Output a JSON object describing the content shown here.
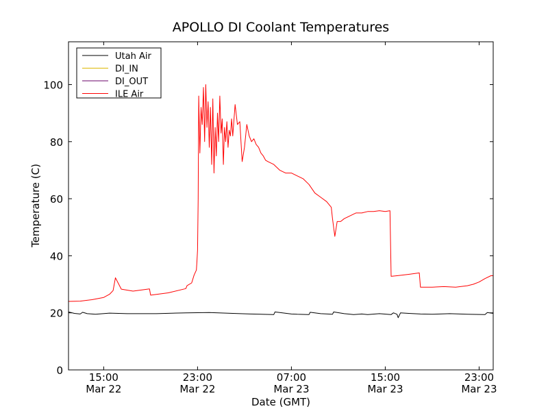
{
  "chart_data": {
    "type": "line",
    "title": "APOLLO DI Coolant Temperatures",
    "xlabel": "Date (GMT)",
    "ylabel": "Temperature (C)",
    "x_unit": "hours",
    "xlim": [
      12.0,
      48.2
    ],
    "ylim": [
      0,
      115
    ],
    "yticks": [
      0,
      20,
      40,
      60,
      80,
      100
    ],
    "xticks": [
      {
        "x": 15,
        "time": "15:00",
        "date": "Mar 22"
      },
      {
        "x": 23,
        "time": "23:00",
        "date": "Mar 22"
      },
      {
        "x": 31,
        "time": "07:00",
        "date": "Mar 23"
      },
      {
        "x": 39,
        "time": "15:00",
        "date": "Mar 23"
      },
      {
        "x": 47,
        "time": "23:00",
        "date": "Mar 23"
      }
    ],
    "grid": false,
    "legend": {
      "position": "top-left"
    },
    "series": [
      {
        "name": "Utah Air",
        "color": "#000000",
        "x": [
          12.0,
          12.5,
          13.0,
          13.2,
          13.6,
          14.3,
          15.5,
          17.0,
          19.5,
          22.0,
          24.0,
          26.0,
          27.5,
          29.5,
          29.6,
          31.0,
          31.5,
          32.5,
          32.6,
          33.5,
          34.5,
          34.6,
          35.5,
          36.3,
          37.0,
          37.5,
          38.5,
          39.5,
          39.7,
          40.0,
          40.1,
          40.3,
          41.0,
          42.0,
          43.0,
          44.5,
          46.0,
          47.5,
          47.7,
          48.2
        ],
        "y": [
          20.3,
          19.8,
          19.6,
          20.2,
          19.7,
          19.5,
          19.9,
          19.7,
          19.7,
          20.0,
          20.1,
          19.8,
          19.6,
          19.4,
          20.3,
          19.6,
          19.5,
          19.4,
          20.2,
          19.7,
          19.5,
          20.3,
          19.7,
          19.4,
          19.6,
          19.4,
          19.7,
          19.4,
          20.0,
          19.5,
          18.3,
          20.0,
          19.8,
          19.6,
          19.5,
          19.7,
          19.5,
          19.4,
          20.1,
          19.8
        ]
      },
      {
        "name": "DI_IN",
        "color": "#ddb800",
        "x": [],
        "y": []
      },
      {
        "name": "DI_OUT",
        "color": "#6a006a",
        "x": [],
        "y": []
      },
      {
        "name": "ILE Air",
        "color": "#ff0000",
        "x": [
          12.0,
          13.0,
          14.0,
          15.0,
          15.5,
          15.8,
          16.0,
          16.5,
          17.5,
          18.9,
          19.0,
          20.5,
          22.0,
          22.1,
          22.5,
          22.7,
          22.9,
          22.95,
          23.0,
          23.05,
          23.1,
          23.2,
          23.3,
          23.4,
          23.5,
          23.6,
          23.7,
          23.8,
          23.9,
          24.0,
          24.1,
          24.2,
          24.3,
          24.4,
          24.5,
          24.6,
          24.7,
          24.8,
          24.9,
          25.0,
          25.1,
          25.2,
          25.3,
          25.4,
          25.5,
          25.6,
          25.7,
          25.8,
          25.9,
          26.0,
          26.2,
          26.4,
          26.6,
          26.8,
          27.0,
          27.2,
          27.4,
          27.6,
          27.8,
          28.0,
          28.2,
          28.4,
          28.6,
          28.8,
          29.0,
          29.5,
          30.0,
          30.5,
          31.0,
          31.5,
          32.0,
          32.5,
          33.0,
          33.5,
          34.0,
          34.4,
          34.5,
          34.7,
          34.9,
          35.2,
          35.5,
          36.0,
          36.5,
          37.0,
          37.5,
          38.0,
          38.5,
          39.0,
          39.4,
          39.5,
          40.0,
          41.0,
          41.9,
          42.0,
          43.0,
          44.0,
          45.0,
          46.0,
          46.5,
          47.0,
          47.5,
          48.0,
          48.2
        ],
        "y": [
          24.0,
          24.1,
          24.6,
          25.4,
          26.5,
          27.8,
          32.3,
          28.3,
          27.6,
          28.4,
          26.2,
          27.0,
          28.5,
          29.5,
          30.5,
          33.2,
          35.0,
          38.0,
          42.0,
          60.0,
          96.0,
          76.0,
          92.0,
          86.0,
          99.0,
          80.0,
          100.0,
          85.0,
          94.0,
          78.0,
          92.0,
          72.0,
          95.0,
          69.0,
          85.0,
          75.0,
          90.0,
          80.0,
          96.0,
          83.0,
          88.0,
          72.0,
          85.0,
          80.0,
          87.0,
          78.0,
          84.0,
          82.0,
          88.0,
          82.0,
          93.0,
          86.0,
          87.0,
          73.0,
          78.0,
          86.0,
          82.0,
          80.0,
          81.0,
          79.0,
          78.0,
          76.0,
          75.0,
          73.5,
          73.0,
          72.0,
          70.0,
          69.0,
          69.0,
          68.0,
          67.0,
          65.0,
          62.0,
          60.5,
          59.0,
          57.0,
          53.0,
          46.8,
          52.0,
          52.0,
          53.0,
          54.0,
          55.0,
          55.0,
          55.5,
          55.5,
          55.8,
          55.5,
          55.8,
          32.8,
          33.0,
          33.5,
          34.0,
          29.0,
          29.0,
          29.2,
          29.0,
          29.5,
          30.0,
          30.8,
          32.0,
          33.0,
          33.0
        ]
      }
    ]
  }
}
